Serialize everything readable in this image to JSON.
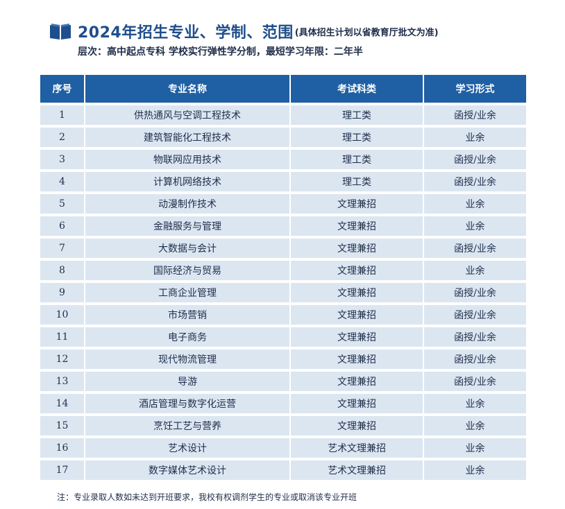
{
  "header": {
    "icon": "open-book-icon",
    "title": "2024年招生专业、学制、范围",
    "title_note": "(具体招生计划以省教育厅批文为准)",
    "subtitle": "层次：高中起点专科  学校实行弹性学分制，最短学习年限：二年半"
  },
  "colors": {
    "header_bg": "#1f5fa3",
    "row_bg": "#dbe6f1",
    "title": "#1f4e8c"
  },
  "table": {
    "headers": [
      "序号",
      "专业名称",
      "考试科类",
      "学习形式"
    ],
    "rows": [
      [
        "1",
        "供热通风与空调工程技术",
        "理工类",
        "函授/业余"
      ],
      [
        "2",
        "建筑智能化工程技术",
        "理工类",
        "业余"
      ],
      [
        "3",
        "物联网应用技术",
        "理工类",
        "函授/业余"
      ],
      [
        "4",
        "计算机网络技术",
        "理工类",
        "函授/业余"
      ],
      [
        "5",
        "动漫制作技术",
        "文理兼招",
        "业余"
      ],
      [
        "6",
        "金融服务与管理",
        "文理兼招",
        "业余"
      ],
      [
        "7",
        "大数据与会计",
        "文理兼招",
        "函授/业余"
      ],
      [
        "8",
        "国际经济与贸易",
        "文理兼招",
        "业余"
      ],
      [
        "9",
        "工商企业管理",
        "文理兼招",
        "函授/业余"
      ],
      [
        "10",
        "市场营销",
        "文理兼招",
        "函授/业余"
      ],
      [
        "11",
        "电子商务",
        "文理兼招",
        "函授/业余"
      ],
      [
        "12",
        "现代物流管理",
        "文理兼招",
        "函授/业余"
      ],
      [
        "13",
        "导游",
        "文理兼招",
        "函授/业余"
      ],
      [
        "14",
        "酒店管理与数字化运营",
        "文理兼招",
        "业余"
      ],
      [
        "15",
        "烹饪工艺与营养",
        "文理兼招",
        "业余"
      ],
      [
        "16",
        "艺术设计",
        "艺术文理兼招",
        "业余"
      ],
      [
        "17",
        "数字媒体艺术设计",
        "艺术文理兼招",
        "业余"
      ]
    ]
  },
  "footer": {
    "note": "注：专业录取人数如未达到开班要求，我校有权调剂学生的专业或取消该专业开班"
  }
}
